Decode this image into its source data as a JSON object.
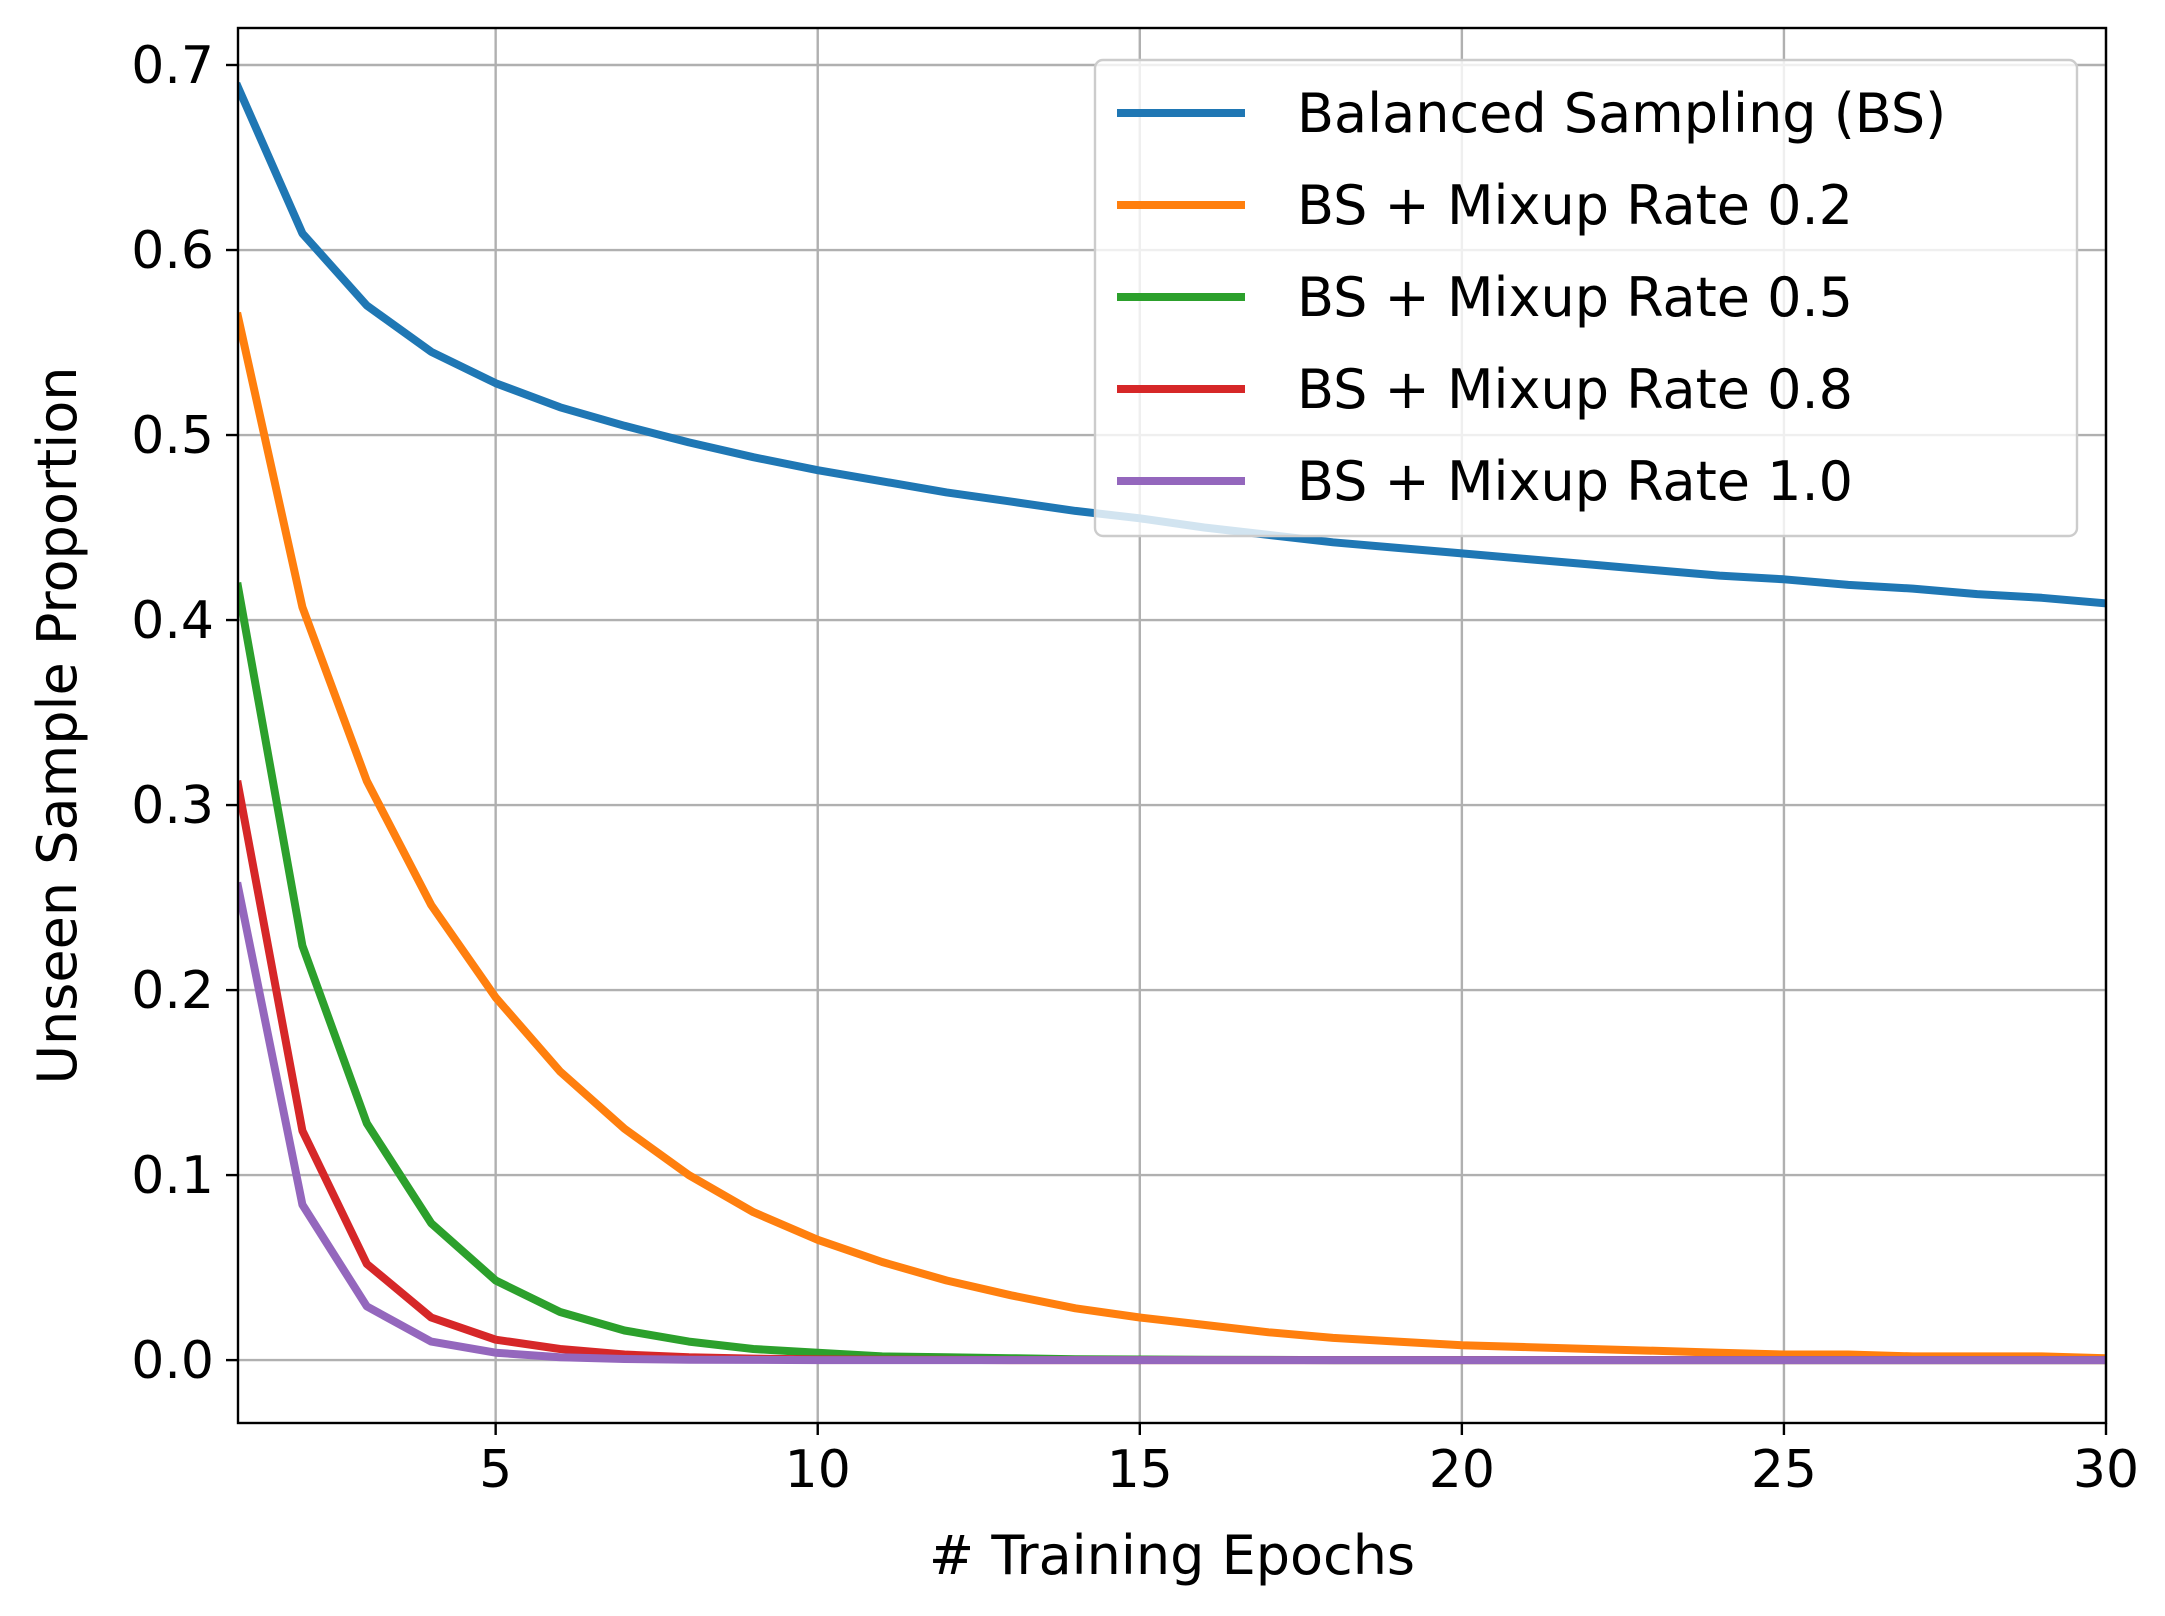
{
  "chart_data": {
    "type": "line",
    "title": "",
    "xlabel": "# Training Epochs",
    "ylabel": "Unseen Sample Proportion",
    "xlim": [
      1,
      30
    ],
    "ylim": [
      -0.034,
      0.72
    ],
    "grid": true,
    "legend_position": "top-right",
    "xticks": [
      5,
      10,
      15,
      20,
      25,
      30
    ],
    "xtick_labels": [
      "5",
      "10",
      "15",
      "20",
      "25",
      "30"
    ],
    "yticks": [
      0.0,
      0.1,
      0.2,
      0.3,
      0.4,
      0.5,
      0.6,
      0.7
    ],
    "ytick_labels": [
      "0.0",
      "0.1",
      "0.2",
      "0.3",
      "0.4",
      "0.5",
      "0.6",
      "0.7"
    ],
    "x": [
      1,
      2,
      3,
      4,
      5,
      6,
      7,
      8,
      9,
      10,
      11,
      12,
      13,
      14,
      15,
      16,
      17,
      18,
      19,
      20,
      21,
      22,
      23,
      24,
      25,
      26,
      27,
      28,
      29,
      30
    ],
    "series": [
      {
        "name": "Balanced Sampling (BS)",
        "color": "#1f77b4",
        "values": [
          0.688,
          0.609,
          0.57,
          0.545,
          0.528,
          0.515,
          0.505,
          0.496,
          0.488,
          0.481,
          0.475,
          0.469,
          0.464,
          0.459,
          0.455,
          0.45,
          0.446,
          0.442,
          0.439,
          0.436,
          0.433,
          0.43,
          0.427,
          0.424,
          0.422,
          0.419,
          0.417,
          0.414,
          0.412,
          0.409
        ]
      },
      {
        "name": "BS + Mixup Rate 0.2",
        "color": "#ff7f0e",
        "values": [
          0.564,
          0.407,
          0.313,
          0.246,
          0.196,
          0.156,
          0.125,
          0.1,
          0.08,
          0.065,
          0.053,
          0.043,
          0.035,
          0.028,
          0.023,
          0.019,
          0.015,
          0.012,
          0.01,
          0.008,
          0.007,
          0.006,
          0.005,
          0.004,
          0.003,
          0.003,
          0.002,
          0.002,
          0.002,
          0.001
        ]
      },
      {
        "name": "BS + Mixup Rate 0.5",
        "color": "#2ca02c",
        "values": [
          0.418,
          0.224,
          0.128,
          0.074,
          0.043,
          0.026,
          0.016,
          0.01,
          0.006,
          0.004,
          0.002,
          0.0015,
          0.001,
          0.0005,
          0.0003,
          0.0002,
          0.0001,
          0,
          0,
          0,
          0,
          0,
          0,
          0,
          0,
          0,
          0,
          0,
          0,
          0
        ]
      },
      {
        "name": "BS + Mixup Rate 0.8",
        "color": "#d62728",
        "values": [
          0.311,
          0.124,
          0.052,
          0.023,
          0.011,
          0.006,
          0.003,
          0.0015,
          0.0008,
          0.0004,
          0.0002,
          0.0001,
          0,
          0,
          0,
          0,
          0,
          0,
          0,
          0,
          0,
          0,
          0,
          0,
          0,
          0,
          0,
          0,
          0,
          0
        ]
      },
      {
        "name": "BS + Mixup Rate 1.0",
        "color": "#9467bd",
        "values": [
          0.256,
          0.084,
          0.029,
          0.01,
          0.004,
          0.0015,
          0.0006,
          0.0002,
          0.0001,
          0,
          0,
          0,
          0,
          0,
          0,
          0,
          0,
          0,
          0,
          0,
          0,
          0,
          0,
          0,
          0,
          0,
          0,
          0,
          0,
          0
        ]
      }
    ]
  }
}
